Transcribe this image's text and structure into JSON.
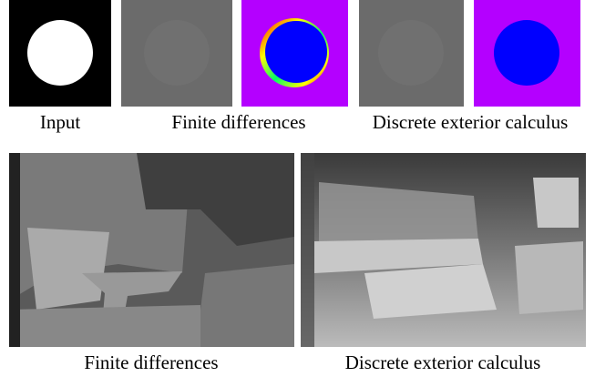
{
  "top_row": {
    "captions": [
      "Input",
      "Finite differences",
      "Discrete exterior calculus"
    ]
  },
  "bottom_row": {
    "captions": [
      "Finite differences",
      "Discrete exterior calculus"
    ]
  }
}
